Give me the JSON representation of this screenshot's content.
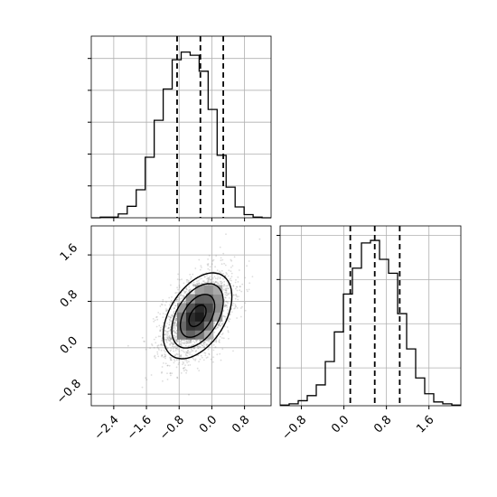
{
  "chart_data": [
    {
      "type": "histogram",
      "panel": "top-left",
      "variable": "x",
      "xlim": [
        -2.95,
        1.45
      ],
      "bins": [
        -2.95,
        -2.73,
        -2.51,
        -2.29,
        -2.07,
        -1.85,
        -1.63,
        -1.41,
        -1.19,
        -0.97,
        -0.75,
        -0.53,
        -0.31,
        -0.09,
        0.13,
        0.35,
        0.57,
        0.79,
        1.01,
        1.23,
        1.45
      ],
      "values": [
        0,
        1,
        1,
        6,
        18,
        44,
        95,
        153,
        202,
        248,
        260,
        255,
        230,
        170,
        98,
        48,
        17,
        5,
        1,
        0
      ],
      "quantile_lines": [
        -0.85,
        -0.28,
        0.28
      ],
      "ylim": [
        0,
        285
      ],
      "grid": true
    },
    {
      "type": "histogram",
      "panel": "bottom-right",
      "variable": "y",
      "xlim": [
        -1.2,
        2.2
      ],
      "bins": [
        -1.2,
        -1.03,
        -0.86,
        -0.69,
        -0.52,
        -0.35,
        -0.18,
        -0.01,
        0.16,
        0.33,
        0.5,
        0.67,
        0.84,
        1.01,
        1.18,
        1.35,
        1.52,
        1.69,
        1.86,
        2.03,
        2.2
      ],
      "values": [
        1,
        3,
        8,
        16,
        33,
        70,
        117,
        177,
        218,
        258,
        262,
        232,
        210,
        146,
        90,
        44,
        19,
        6,
        3,
        1
      ],
      "quantile_lines": [
        0.12,
        0.58,
        1.05
      ],
      "ylim": [
        0,
        285
      ],
      "grid": true
    },
    {
      "type": "contour-scatter",
      "panel": "bottom-left",
      "xlim": [
        -2.95,
        1.45
      ],
      "ylim": [
        -1.0,
        2.1
      ],
      "contour_levels": 4,
      "density_peak": [
        -0.35,
        0.55
      ],
      "grid": true
    }
  ],
  "axes": {
    "x_ticks_xy": [
      "−2.4",
      "−1.6",
      "−0.8",
      "0.0",
      "0.8"
    ],
    "x_tick_values_xy": [
      -2.4,
      -1.6,
      -0.8,
      0.0,
      0.8
    ],
    "y_ticks_xy": [
      "1.6",
      "0.8",
      "0.0",
      "−0.8"
    ],
    "y_tick_values_xy": [
      1.6,
      0.8,
      0.0,
      -0.8
    ],
    "x_ticks_y": [
      "−0.8",
      "0.0",
      "0.8",
      "1.6"
    ],
    "x_tick_values_y": [
      -0.8,
      0.0,
      0.8,
      1.6
    ]
  },
  "colors": {
    "line": "#000000",
    "grid": "#b0b0b0",
    "background": "#ffffff"
  }
}
